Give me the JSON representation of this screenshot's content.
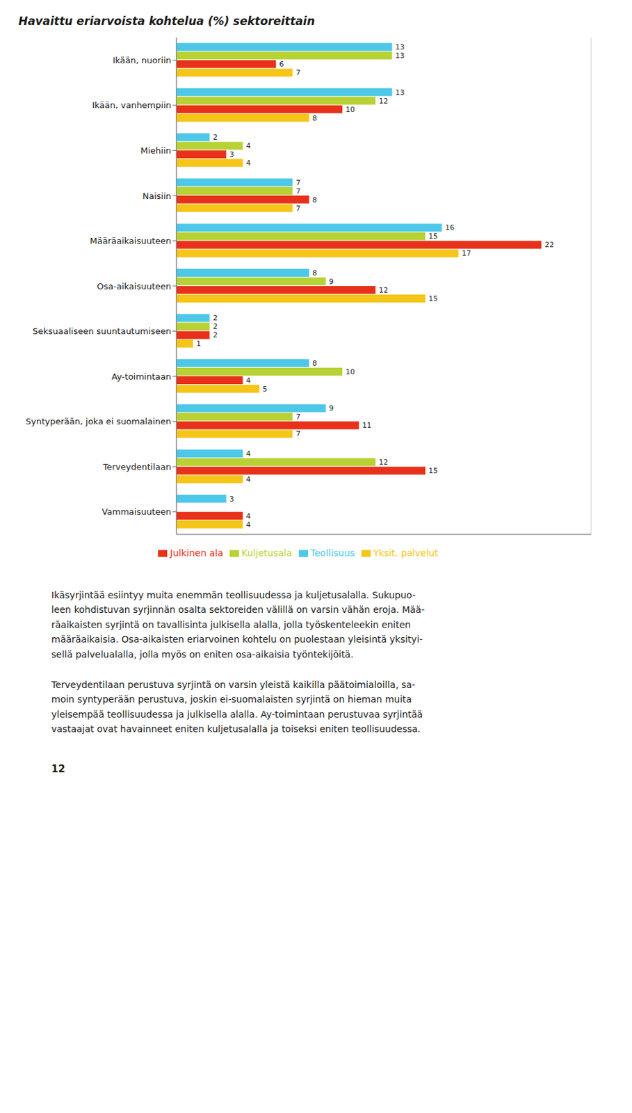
{
  "chart_data": {
    "type": "bar",
    "orientation": "horizontal",
    "title": "Havaittu eriarvoista kohtelua (%) sektoreittain",
    "categories": [
      "Ikään, nuoriin",
      "Ikään, vanhempiin",
      "Miehiin",
      "Naisiin",
      "Määräaikaisuuteen",
      "Osa-aikaisuuteen",
      "Seksuaaliseen suuntautumiseen",
      "Ay-toimintaan",
      "Syntyperään, joka ei suomalainen",
      "Terveydentilaan",
      "Vammaisuuteen"
    ],
    "series": [
      {
        "name": "Teollisuus",
        "color": "#4dc8e8",
        "values": [
          13,
          13,
          2,
          7,
          16,
          8,
          2,
          8,
          9,
          4,
          3
        ]
      },
      {
        "name": "Kuljetusala",
        "color": "#b8d235",
        "values": [
          13,
          12,
          4,
          7,
          15,
          9,
          2,
          10,
          7,
          12,
          0
        ],
        "value_labels": [
          "13",
          "12",
          "4",
          "7",
          "15",
          "9",
          "2",
          "10",
          "7",
          "12",
          null
        ]
      },
      {
        "name": "Julkinen ala",
        "color": "#e8311a",
        "values": [
          6,
          10,
          3,
          8,
          22,
          12,
          2,
          4,
          11,
          15,
          4
        ]
      },
      {
        "name": "Yksit. palvelut",
        "color": "#f5c518",
        "values": [
          7,
          8,
          4,
          7,
          17,
          15,
          1,
          5,
          7,
          4,
          4
        ]
      }
    ],
    "xlim": [
      0,
      25
    ],
    "xticks": [
      5,
      10,
      15,
      20
    ],
    "grid": true,
    "tick_labels": "y",
    "data_labels": true,
    "legend": "bottom",
    "annotations": [
      "Ikäsyrjintää esiintyy muita enemmän teollisuudessa ja kuljetusalalla. Sukupuo-\nleen kohdistuvan syrjinnän osalta sektoreiden välillä on varsin vähän eroja. Mää-\nräaikaisten syrjintä on tavallisinta julkisella alalla, jolla työskenteleekin eniten\nmääräaikaisia. Osa-aikaisten eriarvoinen kohtelu on puolestaan yleisintä yksityi-\nsellä palvelualalla, jolla myös on eniten osa-aikaisia työntekijöitä.",
      "Terveydentilaan perustuva syrjintä on varsin yleistä kaikilla päätoimialoilla, sa-\nmoin syntyperään perustuva, joskin ei-suomalaisten syrjintä on hieman muita\nyleisempää teollisuudessa ja julkisella alalla. Ay-toimintaan perustuvaa syrjintää\nvastaajat ovat havainneet eniten kuljetusalalla ja toiseksi eniten teollisuudessa.",
      "12"
    ]
  }
}
